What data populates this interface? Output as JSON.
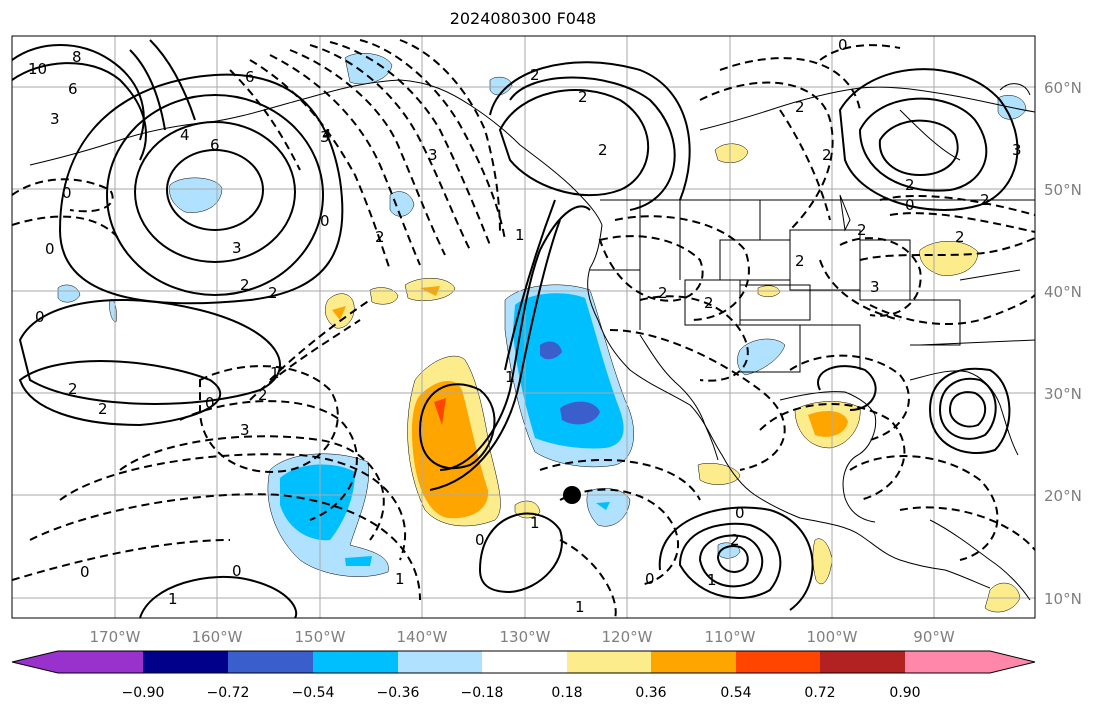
{
  "title": "2024080300 F048",
  "lon_labels": [
    "170°W",
    "160°W",
    "150°W",
    "140°W",
    "130°W",
    "120°W",
    "110°W",
    "100°W",
    "90°W"
  ],
  "lat_labels": [
    "60°N",
    "50°N",
    "40°N",
    "30°N",
    "20°N",
    "10°N"
  ],
  "contour_labels": [
    "10",
    "8",
    "6",
    "3",
    "4",
    "6",
    "6",
    "0",
    "0",
    "3",
    "2",
    "2",
    "3",
    "0",
    "0",
    "2",
    "4",
    "2",
    "3",
    "2",
    "2",
    "2",
    "0",
    "2",
    "2",
    "2",
    "2",
    "3",
    "0",
    "1",
    "2",
    "2",
    "2",
    "2",
    "3",
    "2",
    "0",
    "2",
    "1",
    "2",
    "3",
    "1",
    "1",
    "0",
    "1",
    "1",
    "0",
    "0",
    "1",
    "0",
    "0",
    "2",
    "1"
  ],
  "colorbar": {
    "colors": [
      "#9932cc",
      "#00008b",
      "#3a5fcd",
      "#00bfff",
      "#b0e2ff",
      "#ffffff",
      "#fdec8c",
      "#ffa500",
      "#ff4500",
      "#b22222",
      "#ff88aa"
    ],
    "tick_labels": [
      "−0.90",
      "−0.72",
      "−0.54",
      "−0.36",
      "−0.18",
      "0.18",
      "0.36",
      "0.54",
      "0.72",
      "0.90"
    ]
  },
  "marker": "black-dot"
}
